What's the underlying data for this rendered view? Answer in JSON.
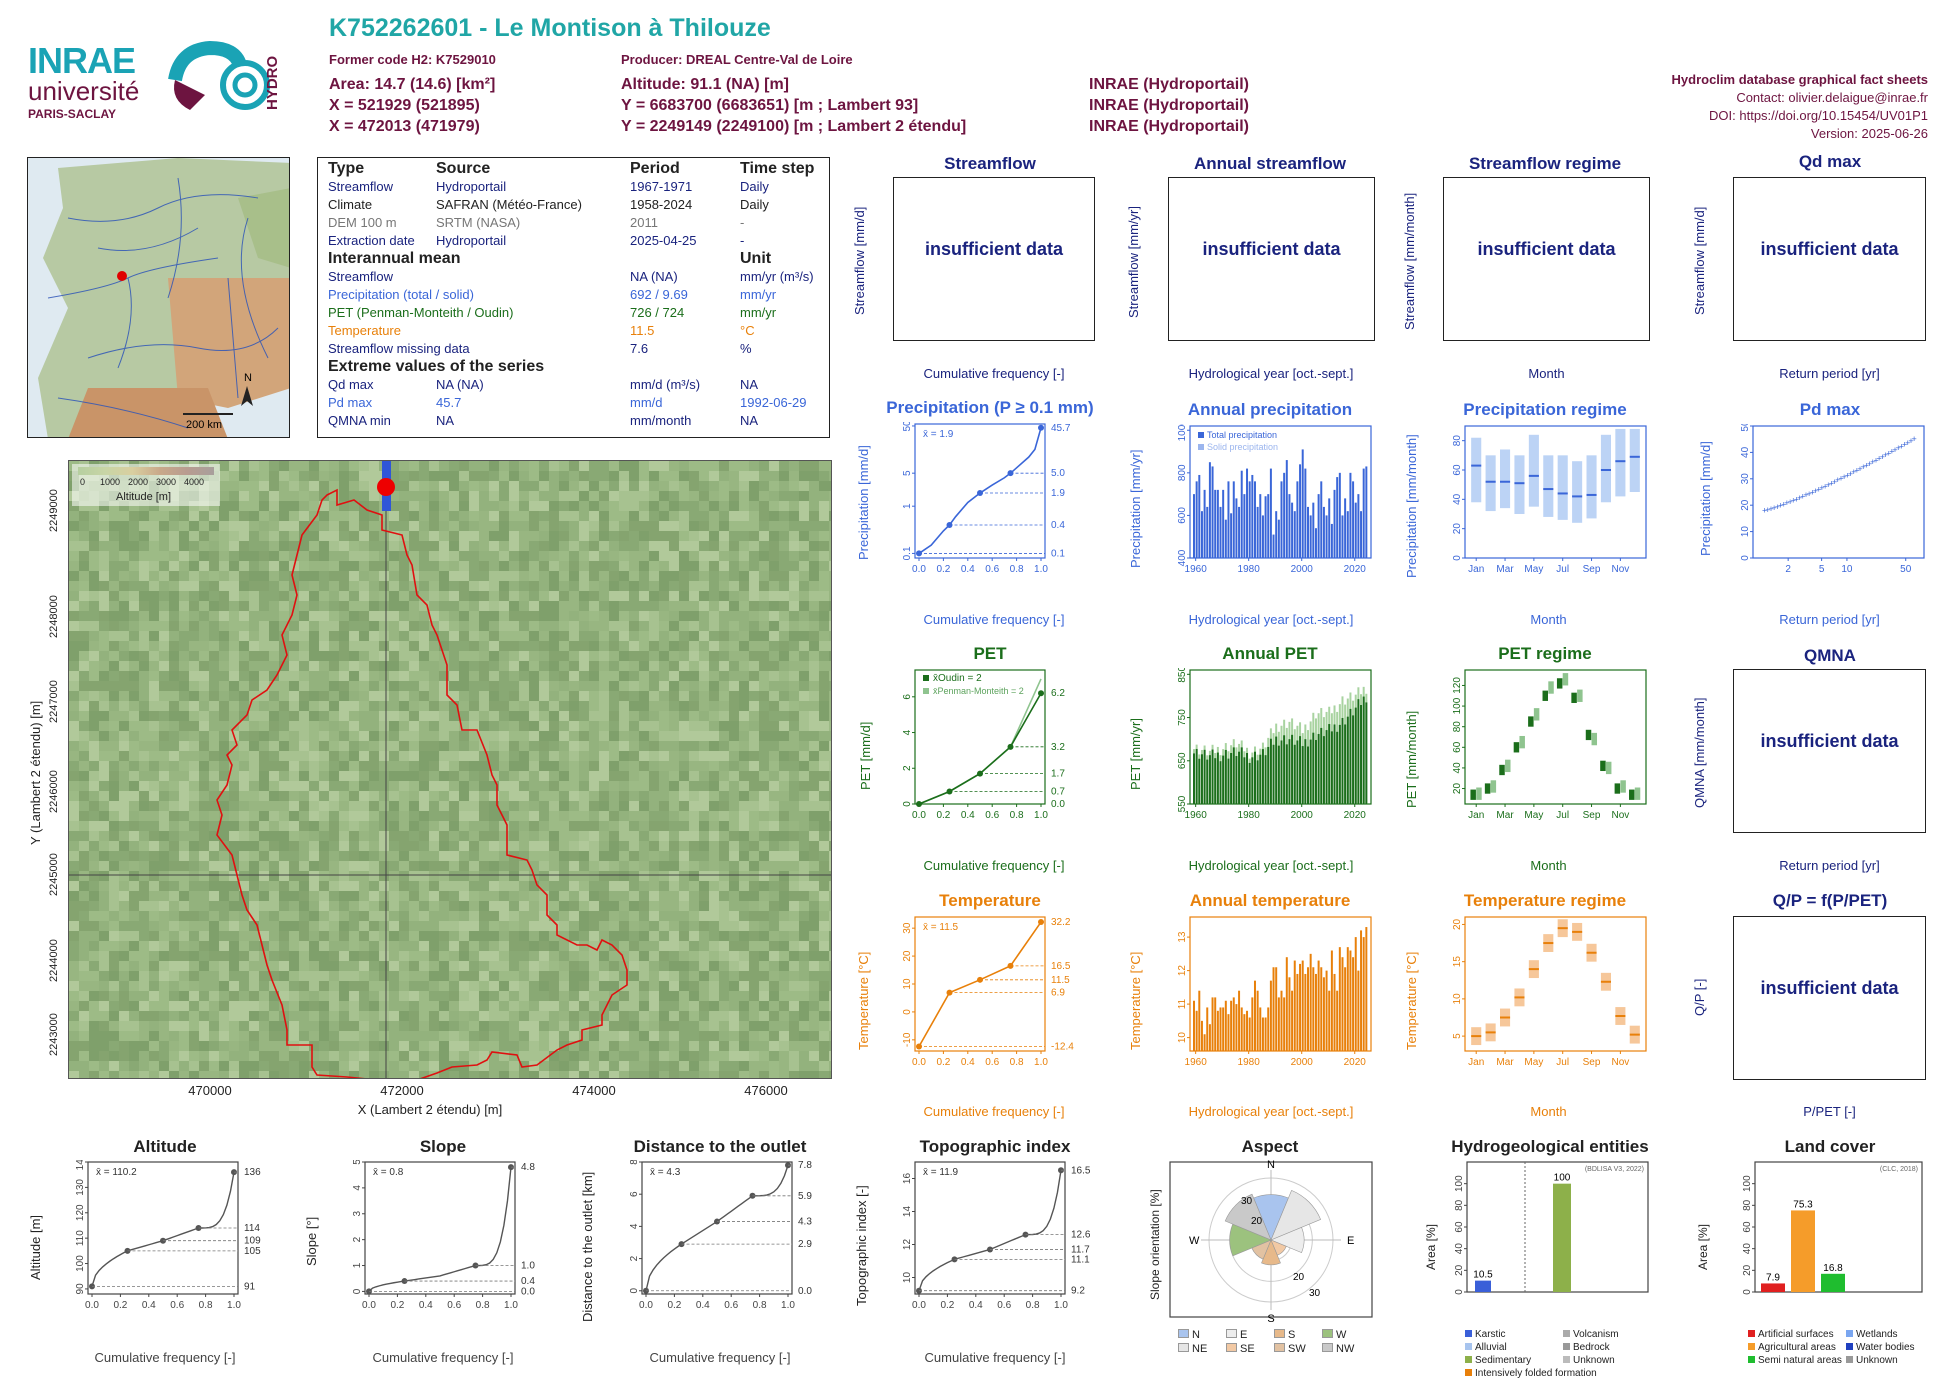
{
  "header": {
    "title": "K752262601 - Le Montison à Thilouze",
    "former_code": "Former code H2: K7529010",
    "producer": "Producer: DREAL Centre-Val de Loire",
    "area": "Area: 14.7 (14.6) [km²]",
    "altitude": "Altitude: 91.1 (NA) [m]",
    "x93": "X = 521929 (521895)",
    "y93": "Y = 6683700 (6683651) [m ; Lambert 93]",
    "x2e": "X = 472013 (471979)",
    "y2e": "Y = 2249149 (2249100) [m ; Lambert 2 étendu]",
    "src1": "INRAE (Hydroportail)",
    "src2": "INRAE (Hydroportail)",
    "src3": "INRAE (Hydroportail)",
    "db": "Hydroclim database graphical fact sheets",
    "contact": "Contact: olivier.delaigue@inrae.fr",
    "doi": "DOI: https://doi.org/10.15454/UV01P1",
    "version": "Version: 2025-06-26",
    "logo_inrae": "INRAE",
    "logo_univ": "université",
    "logo_ps": "PARIS-SACLAY",
    "logo_hydro": "HYDRO"
  },
  "minimap": {
    "north": "N",
    "scale": "200 km"
  },
  "info_table": {
    "h_type": "Type",
    "h_source": "Source",
    "h_period": "Period",
    "h_step": "Time step",
    "rows": [
      {
        "type": "Streamflow",
        "source": "Hydroportail",
        "period": "1967-1971",
        "step": "Daily"
      },
      {
        "type": "Climate",
        "source": "SAFRAN (Météo-France)",
        "period": "1958-2024",
        "step": "Daily"
      },
      {
        "type": "DEM 100 m",
        "source": "SRTM (NASA)",
        "period": "2011",
        "step": "-"
      },
      {
        "type": "Extraction date",
        "source": "Hydroportail",
        "period": "2025-04-25",
        "step": "-"
      }
    ],
    "h_mean": "Interannual mean",
    "h_unit": "Unit",
    "mean_rows": [
      {
        "name": "Streamflow",
        "value": "NA (NA)",
        "unit": "mm/yr (m³/s)"
      },
      {
        "name": "Precipitation (total / solid)",
        "value": "692 / 9.69",
        "unit": "mm/yr"
      },
      {
        "name": "PET (Penman-Monteith / Oudin)",
        "value": "726 / 724",
        "unit": "mm/yr"
      },
      {
        "name": "Temperature",
        "value": "11.5",
        "unit": "°C"
      },
      {
        "name": "Streamflow missing data",
        "value": "7.6",
        "unit": "%"
      }
    ],
    "h_extreme": "Extreme values of the series",
    "ext_rows": [
      {
        "name": "Qd max",
        "value": "NA (NA)",
        "unit": "mm/d (m³/s)",
        "date": "NA"
      },
      {
        "name": "Pd max",
        "value": "45.7",
        "unit": "mm/d",
        "date": "1992-06-29"
      },
      {
        "name": "QMNA min",
        "value": "NA",
        "unit": "mm/month",
        "date": "NA"
      }
    ]
  },
  "dem": {
    "legend_ticks": [
      "0",
      "1000",
      "2000",
      "3000",
      "4000"
    ],
    "legend_title": "Altitude [m]",
    "xticks": [
      "470000",
      "472000",
      "474000",
      "476000"
    ],
    "yticks": [
      "2243000",
      "2244000",
      "2245000",
      "2246000",
      "2247000",
      "2248000",
      "2249000"
    ],
    "xlabel": "X (Lambert 2 étendu) [m]",
    "ylabel": "Y (Lambert 2 étendu) [m]"
  },
  "flow_panels": {
    "insufficient": "insufficient data",
    "streamflow": {
      "title": "Streamflow",
      "ylabel": "Streamflow [mm/d]",
      "xlabel": "Cumulative frequency [-]"
    },
    "annual": {
      "title": "Annual streamflow",
      "ylabel": "Streamflow [mm/yr]",
      "xlabel": "Hydrological year [oct.-sept.]"
    },
    "regime": {
      "title": "Streamflow regime",
      "ylabel": "Streamflow [mm/month]",
      "xlabel": "Month"
    },
    "qdmax": {
      "title": "Qd max",
      "ylabel": "Streamflow [mm/d]",
      "xlabel": "Return period [yr]"
    },
    "qmna": {
      "title": "QMNA",
      "ylabel": "QMNA [mm/month]",
      "xlabel": "Return period [yr]"
    },
    "qp": {
      "title": "Q/P = f(P/PET)",
      "ylabel": "Q/P [-]",
      "xlabel": "P/PET [-]"
    }
  },
  "precip": {
    "cdf_title": "Precipitation (P ≥ 0.1 mm)",
    "cdf_ylabel": "Precipitation [mm/d]",
    "cdf_xlabel": "Cumulative frequency [-]",
    "cdf_mean": "x̄ = 1.9",
    "cdf_right_labels": [
      "45.7",
      "5.0",
      "1.9",
      "0.4",
      "0.1"
    ],
    "annual_title": "Annual precipitation",
    "annual_ylabel": "Precipitation [mm/yr]",
    "annual_xlabel": "Hydrological year [oct.-sept.]",
    "annual_legend": [
      "Total precipitation",
      "Solid precipitation"
    ],
    "regime_title": "Precipitation regime",
    "regime_ylabel": "Precipitation [mm/month]",
    "regime_xlabel": "Month",
    "pd_title": "Pd max",
    "pd_ylabel": "Precipitation [mm/d]",
    "pd_xlabel": "Return period [yr]"
  },
  "pet": {
    "cdf_title": "PET",
    "cdf_ylabel": "PET [mm/d]",
    "cdf_xlabel": "Cumulative frequency [-]",
    "cdf_leg1": "x̄Oudin = 2",
    "cdf_leg2": "x̄Penman-Monteith = 2",
    "cdf_right_labels": [
      "6.2",
      "3.2",
      "1.7",
      "0.7",
      "0.0"
    ],
    "annual_title": "Annual PET",
    "annual_ylabel": "PET [mm/yr]",
    "annual_xlabel": "Hydrological year [oct.-sept.]",
    "regime_title": "PET regime",
    "regime_ylabel": "PET [mm/month]",
    "regime_xlabel": "Month"
  },
  "temp": {
    "cdf_title": "Temperature",
    "cdf_ylabel": "Temperature [°C]",
    "cdf_xlabel": "Cumulative frequency [-]",
    "cdf_mean": "x̄ = 11.5",
    "cdf_right_labels": [
      "32.2",
      "16.5",
      "11.5",
      "6.9",
      "-12.4"
    ],
    "annual_title": "Annual temperature",
    "annual_ylabel": "Temperature [°C]",
    "annual_xlabel": "Hydrological year [oct.-sept.]",
    "regime_title": "Temperature regime",
    "regime_ylabel": "Temperature [°C]",
    "regime_xlabel": "Month"
  },
  "bottom": {
    "alt": {
      "title": "Altitude",
      "ylabel": "Altitude [m]",
      "xlabel": "Cumulative frequency [-]",
      "mean": "x̄ = 110.2",
      "right": [
        "136",
        "114",
        "109",
        "105",
        "91"
      ]
    },
    "slope": {
      "title": "Slope",
      "ylabel": "Slope [°]",
      "xlabel": "Cumulative frequency [-]",
      "mean": "x̄ = 0.8",
      "right": [
        "4.8",
        "1.0",
        "0.4",
        "0.0"
      ]
    },
    "dist": {
      "title": "Distance to the outlet",
      "ylabel": "Distance to the outlet [km]",
      "xlabel": "Cumulative frequency [-]",
      "mean": "x̄ = 4.3",
      "right": [
        "7.8",
        "5.9",
        "4.3",
        "2.9",
        "0.0"
      ]
    },
    "topo": {
      "title": "Topographic index",
      "ylabel": "Topographic index [-]",
      "xlabel": "Cumulative frequency [-]",
      "mean": "x̄ = 11.9",
      "right": [
        "16.5",
        "12.6",
        "11.7",
        "11.1",
        "9.2"
      ]
    },
    "aspect": {
      "title": "Aspect",
      "ylabel": "Slope orientation [%]",
      "legend": [
        "N",
        "E",
        "S",
        "W",
        "NE",
        "SE",
        "SW",
        "NW"
      ]
    },
    "hydrogeo": {
      "title": "Hydrogeological entities",
      "source": "(BDLISA V3, 2022)",
      "ylabel": "Area [%]",
      "legend": [
        "Karstic",
        "Volcanism",
        "Alluvial",
        "Bedrock",
        "Sedimentary",
        "Unknown",
        "Intensively folded formation"
      ]
    },
    "landcover": {
      "title": "Land cover",
      "source": "(CLC, 2018)",
      "ylabel": "Area [%]",
      "legend": [
        "Artificial surfaces",
        "Wetlands",
        "Agricultural areas",
        "Water bodies",
        "Semi natural areas",
        "Unknown"
      ]
    }
  },
  "chart_data": [
    {
      "type": "line",
      "title": "Precipitation (P ≥ 0.1 mm)",
      "xlabel": "Cumulative frequency [-]",
      "ylabel": "Precipitation [mm/d]",
      "yscale": "log",
      "xlim": [
        0,
        1
      ],
      "x": [
        0,
        0.1,
        0.2,
        0.25,
        0.3,
        0.4,
        0.5,
        0.6,
        0.7,
        0.75,
        0.8,
        0.9,
        0.95,
        1.0
      ],
      "values": [
        0.1,
        0.15,
        0.3,
        0.4,
        0.6,
        1.2,
        1.9,
        2.8,
        4.0,
        5.0,
        6.5,
        11,
        16,
        45.7
      ]
    },
    {
      "type": "bar",
      "title": "Annual precipitation",
      "ylim": [
        400,
        1000
      ],
      "x": [
        1959,
        1960,
        1961,
        1962,
        1963,
        1964,
        1965,
        1966,
        1967,
        1968,
        1969,
        1970,
        1971,
        1972,
        1973,
        1974,
        1975,
        1976,
        1977,
        1978,
        1979,
        1980,
        1981,
        1982,
        1983,
        1984,
        1985,
        1986,
        1987,
        1988,
        1989,
        1990,
        1991,
        1992,
        1993,
        1994,
        1995,
        1996,
        1997,
        1998,
        1999,
        2000,
        2001,
        2002,
        2003,
        2004,
        2005,
        2006,
        2007,
        2008,
        2009,
        2010,
        2011,
        2012,
        2013,
        2014,
        2015,
        2016,
        2017,
        2018,
        2019,
        2020,
        2021,
        2022,
        2023,
        2024
      ],
      "series": [
        {
          "name": "Total precipitation",
          "values": [
            700,
            760,
            790,
            620,
            720,
            640,
            850,
            830,
            720,
            720,
            640,
            720,
            580,
            760,
            610,
            760,
            680,
            640,
            810,
            700,
            820,
            760,
            790,
            760,
            640,
            700,
            600,
            690,
            700,
            820,
            510,
            620,
            580,
            760,
            800,
            860,
            700,
            660,
            620,
            760,
            840,
            910,
            820,
            640,
            600,
            660,
            540,
            700,
            760,
            640,
            600,
            680,
            560,
            720,
            780,
            800,
            600,
            680,
            620,
            800,
            760,
            660,
            700,
            620,
            820,
            830
          ]
        }
      ]
    },
    {
      "type": "bar",
      "title": "Precipitation regime",
      "categories": [
        "Jan",
        "Feb",
        "Mar",
        "Apr",
        "May",
        "Jun",
        "Jul",
        "Aug",
        "Sep",
        "Oct",
        "Nov",
        "Dec"
      ],
      "values": [
        63,
        52,
        52,
        51,
        56,
        47,
        44,
        42,
        43,
        60,
        66,
        69
      ],
      "q10": [
        38,
        32,
        34,
        30,
        35,
        28,
        26,
        24,
        27,
        38,
        42,
        45
      ],
      "q90": [
        82,
        70,
        74,
        70,
        84,
        70,
        70,
        66,
        70,
        84,
        88,
        88
      ],
      "ylim": [
        0,
        90
      ]
    },
    {
      "type": "scatter",
      "title": "Pd max",
      "xlabel": "Return period [yr]",
      "xscale": "log",
      "x": [
        1.1,
        1.5,
        2,
        3,
        5,
        8,
        12,
        20,
        30,
        50,
        60
      ],
      "values": [
        18,
        22,
        26,
        30,
        32,
        33,
        36,
        38,
        40,
        43,
        45.7
      ],
      "ylim": [
        0,
        50
      ]
    },
    {
      "type": "line",
      "title": "PET",
      "x": [
        0,
        0.25,
        0.5,
        0.75,
        1.0
      ],
      "series": [
        {
          "name": "x̄Oudin = 2",
          "values": [
            0.0,
            0.7,
            1.7,
            3.2,
            6.2
          ]
        },
        {
          "name": "x̄Penman-Monteith = 2",
          "values": [
            0.0,
            0.7,
            1.7,
            3.2,
            7.0
          ]
        }
      ]
    },
    {
      "type": "bar",
      "title": "Annual PET",
      "ylim": [
        550,
        850
      ],
      "x": [
        1959,
        1965,
        1970,
        1975,
        1980,
        1985,
        1990,
        1995,
        2000,
        2005,
        2010,
        2015,
        2020,
        2024
      ],
      "series": [
        {
          "name": "Oudin",
          "values": [
            670,
            660,
            665,
            670,
            660,
            665,
            700,
            700,
            690,
            710,
            720,
            740,
            770,
            800
          ]
        },
        {
          "name": "Penman-Monteith",
          "values": [
            680,
            670,
            680,
            690,
            670,
            680,
            730,
            740,
            720,
            760,
            760,
            790,
            800,
            820
          ]
        }
      ]
    },
    {
      "type": "bar",
      "title": "PET regime",
      "categories": [
        "Jan",
        "Feb",
        "Mar",
        "Apr",
        "May",
        "Jun",
        "Jul",
        "Aug",
        "Sep",
        "Oct",
        "Nov",
        "Dec"
      ],
      "series": [
        {
          "name": "Oudin",
          "values": [
            14,
            20,
            38,
            60,
            85,
            110,
            122,
            108,
            72,
            42,
            20,
            14
          ]
        },
        {
          "name": "Penman-Monteith",
          "values": [
            15,
            22,
            42,
            65,
            92,
            118,
            126,
            110,
            68,
            40,
            22,
            15
          ]
        }
      ]
    },
    {
      "type": "line",
      "title": "Temperature",
      "x": [
        0,
        0.25,
        0.5,
        0.75,
        1.0
      ],
      "values": [
        -12.4,
        6.9,
        11.5,
        16.5,
        32.2
      ]
    },
    {
      "type": "bar",
      "title": "Annual temperature",
      "ylim": [
        9.5,
        13.5
      ],
      "x": [
        1959,
        1960,
        1961,
        1962,
        1963,
        1964,
        1965,
        1966,
        1967,
        1968,
        1969,
        1970,
        1971,
        1972,
        1973,
        1974,
        1975,
        1976,
        1977,
        1978,
        1979,
        1980,
        1981,
        1982,
        1983,
        1984,
        1985,
        1986,
        1987,
        1988,
        1989,
        1990,
        1991,
        1992,
        1993,
        1994,
        1995,
        1996,
        1997,
        1998,
        1999,
        2000,
        2001,
        2002,
        2003,
        2004,
        2005,
        2006,
        2007,
        2008,
        2009,
        2010,
        2011,
        2012,
        2013,
        2014,
        2015,
        2016,
        2017,
        2018,
        2019,
        2020,
        2021,
        2022,
        2023,
        2024
      ],
      "values": [
        11.1,
        10.8,
        11.4,
        10.5,
        10.1,
        10.9,
        10.4,
        11.2,
        11.2,
        10.8,
        10.9,
        10.9,
        11.1,
        10.7,
        11.1,
        11.2,
        11.0,
        11.4,
        10.9,
        10.7,
        10.8,
        10.6,
        11.2,
        11.7,
        11.4,
        10.9,
        10.6,
        10.6,
        10.9,
        11.7,
        12.1,
        12.1,
        11.2,
        11.4,
        11.2,
        12.4,
        11.8,
        11.4,
        12.3,
        11.9,
        12.2,
        12.3,
        11.9,
        12.1,
        12.5,
        12.1,
        11.9,
        12.3,
        12.1,
        11.8,
        12.0,
        11.4,
        12.6,
        11.9,
        11.4,
        12.7,
        12.4,
        12.1,
        12.7,
        12.6,
        12.4,
        13.0,
        12.0,
        13.2,
        13.0,
        13.3
      ]
    },
    {
      "type": "bar",
      "title": "Temperature regime",
      "categories": [
        "Jan",
        "Feb",
        "Mar",
        "Apr",
        "May",
        "Jun",
        "Jul",
        "Aug",
        "Sep",
        "Oct",
        "Nov",
        "Dec"
      ],
      "values": [
        5,
        5.5,
        7.5,
        10.2,
        14,
        17.5,
        19.5,
        19,
        16.2,
        12.3,
        7.7,
        5.2
      ],
      "ylim": [
        3,
        21
      ]
    },
    {
      "type": "line",
      "title": "Altitude",
      "x": [
        0,
        0.25,
        0.5,
        0.75,
        1.0
      ],
      "values": [
        91,
        105,
        109,
        114,
        136
      ]
    },
    {
      "type": "line",
      "title": "Slope",
      "x": [
        0,
        0.25,
        0.5,
        0.75,
        1.0
      ],
      "values": [
        0.0,
        0.4,
        0.6,
        1.0,
        4.8
      ]
    },
    {
      "type": "line",
      "title": "Distance to the outlet",
      "x": [
        0,
        0.25,
        0.5,
        0.75,
        1.0
      ],
      "values": [
        0.0,
        2.9,
        4.3,
        5.9,
        7.8
      ]
    },
    {
      "type": "line",
      "title": "Topographic index",
      "x": [
        0,
        0.25,
        0.5,
        0.75,
        1.0
      ],
      "values": [
        9.2,
        11.1,
        11.7,
        12.6,
        16.5
      ]
    },
    {
      "type": "bar",
      "title": "Aspect",
      "categories": [
        "N",
        "NE",
        "E",
        "SE",
        "S",
        "SW",
        "W",
        "NW"
      ],
      "values": [
        22,
        26,
        16,
        8,
        12,
        10,
        20,
        24
      ]
    },
    {
      "type": "bar",
      "title": "Hydrogeological entities",
      "categories": [
        "Alluvial/Karstic",
        "Sedimentary"
      ],
      "values": [
        10.5,
        100
      ],
      "ylim": [
        0,
        120
      ]
    },
    {
      "type": "bar",
      "title": "Land cover",
      "categories": [
        "Artificial surfaces",
        "Agricultural areas",
        "Semi natural areas"
      ],
      "values": [
        7.9,
        75.3,
        16.8
      ],
      "ylim": [
        0,
        120
      ]
    }
  ],
  "colors": {
    "teal": "#20a6a6",
    "maroon": "#6d1440",
    "navy": "#1a237e",
    "blue": "#3a66d8",
    "green": "#1b6e1b",
    "orange": "#e8800a"
  }
}
